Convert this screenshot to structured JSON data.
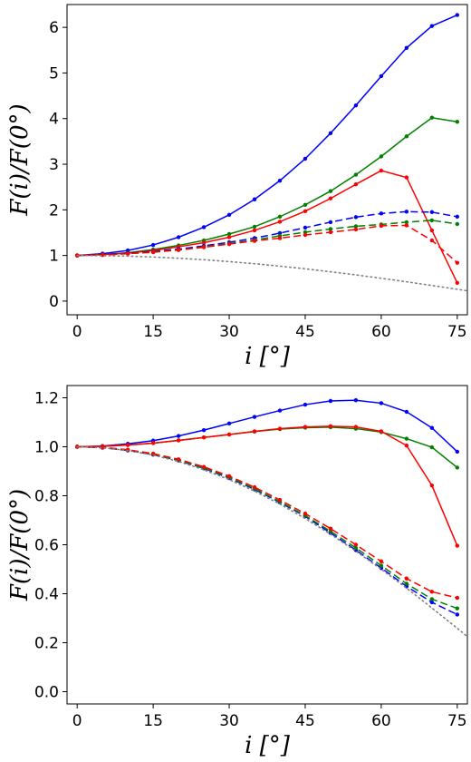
{
  "chart_data": [
    {
      "type": "line",
      "xlabel": "i  [°]",
      "ylabel": "F(i)/F(0°)",
      "xlim": [
        -2,
        77
      ],
      "ylim": [
        -0.3,
        6.5
      ],
      "xticks": [
        0,
        15,
        30,
        45,
        60,
        75
      ],
      "yticks": [
        0,
        1,
        2,
        3,
        4,
        5,
        6
      ],
      "xtick_labels": [
        "0",
        "15",
        "30",
        "45",
        "60",
        "75"
      ],
      "ytick_labels": [
        "0",
        "1",
        "2",
        "3",
        "4",
        "5",
        "6"
      ],
      "grid": false,
      "legend": "none",
      "series": [
        {
          "style": "solid",
          "color": "#0000ff",
          "marker": true,
          "x": [
            0,
            5,
            10,
            15,
            20,
            25,
            30,
            35,
            40,
            45,
            50,
            55,
            60,
            65,
            70,
            75
          ],
          "y": [
            1.0,
            1.04,
            1.11,
            1.23,
            1.4,
            1.62,
            1.89,
            2.23,
            2.64,
            3.12,
            3.68,
            4.29,
            4.93,
            5.55,
            6.03,
            6.27
          ]
        },
        {
          "style": "solid",
          "color": "#008000",
          "marker": true,
          "x": [
            0,
            5,
            10,
            15,
            20,
            25,
            30,
            35,
            40,
            45,
            50,
            55,
            60,
            65,
            70,
            75
          ],
          "y": [
            1.0,
            1.02,
            1.06,
            1.13,
            1.22,
            1.33,
            1.47,
            1.63,
            1.85,
            2.11,
            2.41,
            2.77,
            3.17,
            3.61,
            4.02,
            3.93
          ]
        },
        {
          "style": "solid",
          "color": "#ff0000",
          "marker": true,
          "x": [
            0,
            5,
            10,
            15,
            20,
            25,
            30,
            35,
            40,
            45,
            50,
            55,
            60,
            65,
            70,
            75
          ],
          "y": [
            1.0,
            1.02,
            1.05,
            1.11,
            1.19,
            1.28,
            1.4,
            1.55,
            1.74,
            1.97,
            2.25,
            2.56,
            2.86,
            2.71,
            1.55,
            0.4
          ]
        },
        {
          "style": "dashed",
          "color": "#0000ff",
          "marker": true,
          "x": [
            0,
            5,
            10,
            15,
            20,
            25,
            30,
            35,
            40,
            45,
            50,
            55,
            60,
            65,
            70,
            75
          ],
          "y": [
            1.0,
            1.02,
            1.05,
            1.09,
            1.14,
            1.21,
            1.29,
            1.38,
            1.49,
            1.61,
            1.73,
            1.84,
            1.92,
            1.96,
            1.95,
            1.85
          ]
        },
        {
          "style": "dashed",
          "color": "#008000",
          "marker": true,
          "x": [
            0,
            5,
            10,
            15,
            20,
            25,
            30,
            35,
            40,
            45,
            50,
            55,
            60,
            65,
            70,
            75
          ],
          "y": [
            1.0,
            1.01,
            1.04,
            1.08,
            1.12,
            1.19,
            1.26,
            1.34,
            1.43,
            1.51,
            1.58,
            1.64,
            1.68,
            1.73,
            1.77,
            1.69
          ]
        },
        {
          "style": "dashed",
          "color": "#ff0000",
          "marker": true,
          "x": [
            0,
            5,
            10,
            15,
            20,
            25,
            30,
            35,
            40,
            45,
            50,
            55,
            60,
            65,
            70,
            75
          ],
          "y": [
            1.0,
            1.01,
            1.04,
            1.07,
            1.12,
            1.18,
            1.25,
            1.32,
            1.38,
            1.45,
            1.51,
            1.57,
            1.65,
            1.66,
            1.33,
            0.84
          ]
        },
        {
          "style": "dotted",
          "color": "#808080",
          "marker": false,
          "x": [
            0,
            5,
            10,
            15,
            20,
            25,
            30,
            35,
            40,
            45,
            50,
            55,
            60,
            65,
            70,
            75,
            77
          ],
          "y": [
            1.0,
            0.996,
            0.985,
            0.966,
            0.94,
            0.906,
            0.866,
            0.819,
            0.766,
            0.707,
            0.643,
            0.574,
            0.5,
            0.423,
            0.342,
            0.259,
            0.225
          ]
        }
      ]
    },
    {
      "type": "line",
      "xlabel": "i  [°]",
      "ylabel": "F(i)/F(0°)",
      "xlim": [
        -2,
        77
      ],
      "ylim": [
        -0.05,
        1.25
      ],
      "xticks": [
        0,
        15,
        30,
        45,
        60,
        75
      ],
      "yticks": [
        0.0,
        0.2,
        0.4,
        0.6,
        0.8,
        1.0,
        1.2
      ],
      "xtick_labels": [
        "0",
        "15",
        "30",
        "45",
        "60",
        "75"
      ],
      "ytick_labels": [
        "0.0",
        "0.2",
        "0.4",
        "0.6",
        "0.8",
        "1.0",
        "1.2"
      ],
      "grid": false,
      "legend": "none",
      "series": [
        {
          "style": "solid",
          "color": "#0000ff",
          "marker": true,
          "x": [
            0,
            5,
            10,
            15,
            20,
            25,
            30,
            35,
            40,
            45,
            50,
            55,
            60,
            65,
            70,
            75
          ],
          "y": [
            1.0,
            1.003,
            1.012,
            1.025,
            1.044,
            1.068,
            1.095,
            1.122,
            1.148,
            1.172,
            1.187,
            1.19,
            1.178,
            1.143,
            1.077,
            0.98
          ]
        },
        {
          "style": "solid",
          "color": "#008000",
          "marker": true,
          "x": [
            0,
            5,
            10,
            15,
            20,
            25,
            30,
            35,
            40,
            45,
            50,
            55,
            60,
            65,
            70,
            75
          ],
          "y": [
            1.0,
            1.002,
            1.007,
            1.015,
            1.026,
            1.038,
            1.05,
            1.062,
            1.072,
            1.078,
            1.08,
            1.074,
            1.06,
            1.033,
            0.998,
            0.915
          ]
        },
        {
          "style": "solid",
          "color": "#ff0000",
          "marker": true,
          "x": [
            0,
            5,
            10,
            15,
            20,
            25,
            30,
            35,
            40,
            45,
            50,
            55,
            60,
            65,
            70,
            75
          ],
          "y": [
            1.0,
            1.002,
            1.007,
            1.015,
            1.026,
            1.038,
            1.05,
            1.063,
            1.074,
            1.081,
            1.084,
            1.081,
            1.063,
            1.005,
            0.842,
            0.596
          ]
        },
        {
          "style": "dashed",
          "color": "#0000ff",
          "marker": true,
          "x": [
            0,
            5,
            10,
            15,
            20,
            25,
            30,
            35,
            40,
            45,
            50,
            55,
            60,
            65,
            70,
            75
          ],
          "y": [
            1.0,
            0.996,
            0.985,
            0.968,
            0.944,
            0.912,
            0.872,
            0.826,
            0.773,
            0.716,
            0.648,
            0.578,
            0.505,
            0.43,
            0.365,
            0.315
          ]
        },
        {
          "style": "dashed",
          "color": "#008000",
          "marker": true,
          "x": [
            0,
            5,
            10,
            15,
            20,
            25,
            30,
            35,
            40,
            45,
            50,
            55,
            60,
            65,
            70,
            75
          ],
          "y": [
            1.0,
            0.997,
            0.987,
            0.97,
            0.946,
            0.914,
            0.875,
            0.829,
            0.776,
            0.719,
            0.655,
            0.587,
            0.515,
            0.441,
            0.378,
            0.34
          ]
        },
        {
          "style": "dashed",
          "color": "#ff0000",
          "marker": true,
          "x": [
            0,
            5,
            10,
            15,
            20,
            25,
            30,
            35,
            40,
            45,
            50,
            55,
            60,
            65,
            70,
            75
          ],
          "y": [
            1.0,
            0.998,
            0.988,
            0.972,
            0.949,
            0.918,
            0.88,
            0.835,
            0.783,
            0.727,
            0.666,
            0.6,
            0.532,
            0.462,
            0.408,
            0.383
          ]
        },
        {
          "style": "dotted",
          "color": "#808080",
          "marker": false,
          "x": [
            0,
            5,
            10,
            15,
            20,
            25,
            30,
            35,
            40,
            45,
            50,
            55,
            60,
            65,
            70,
            75,
            77
          ],
          "y": [
            1.0,
            0.996,
            0.985,
            0.966,
            0.94,
            0.906,
            0.866,
            0.819,
            0.766,
            0.707,
            0.643,
            0.574,
            0.5,
            0.423,
            0.342,
            0.259,
            0.225
          ]
        }
      ]
    }
  ]
}
